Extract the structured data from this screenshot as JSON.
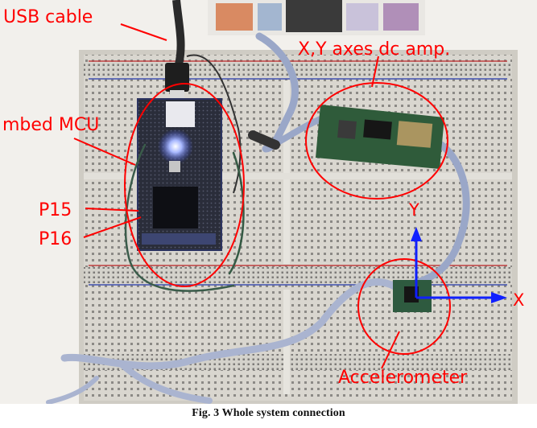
{
  "labels": {
    "usb_cable": "USB cable",
    "amp": "X,Y axes dc amp.",
    "mcu": "mbed MCU",
    "p15": "P15",
    "p16": "P16",
    "y_axis": "Y",
    "x_axis": "X",
    "accelerometer": "Accelerometer"
  },
  "caption": "Fig. 3 Whole system connection",
  "colors": {
    "annotation": "#ff0000",
    "breadboard": "#d8d4cc",
    "board_green": "#2f5b3a",
    "ribbon_wire": "#9aa7c8"
  }
}
